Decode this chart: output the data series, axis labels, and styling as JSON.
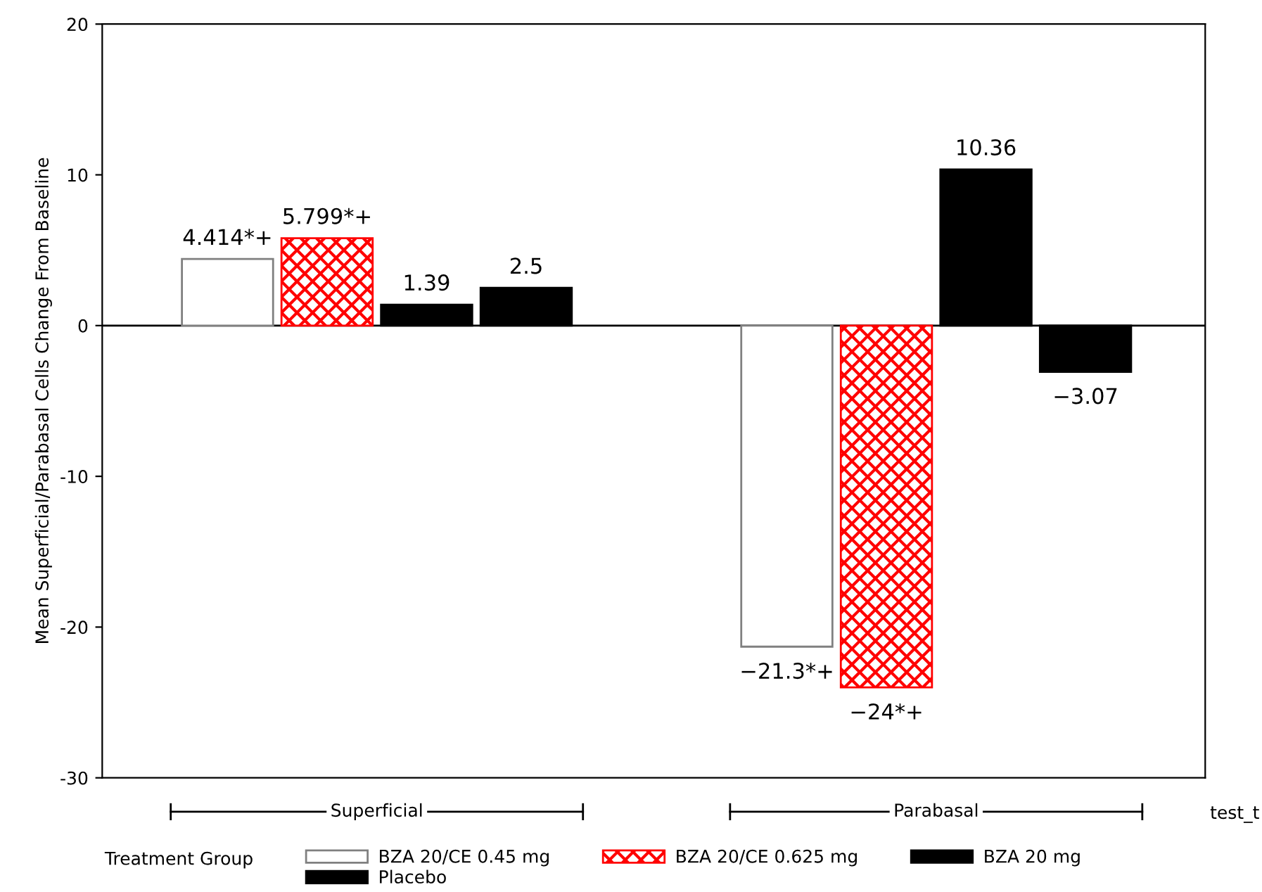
{
  "chart_data": {
    "type": "bar",
    "ylabel": "Mean Superficial/Parabasal Cells Change From Baseline",
    "legend_title": "Treatment Group",
    "categories": [
      "Superficial",
      "Parabasal"
    ],
    "series": [
      {
        "name": "BZA 20/CE 0.45 mg",
        "color": "#ffffff",
        "values": [
          4.414,
          -21.3
        ],
        "value_labels": [
          "4.414*+",
          "−21.3*+"
        ]
      },
      {
        "name": "BZA 20/CE 0.625 mg",
        "color": "#ff0000",
        "values": [
          5.799,
          -24
        ],
        "value_labels": [
          "5.799*+",
          "−24*+"
        ]
      },
      {
        "name": "BZA 20 mg",
        "color": "#000000",
        "values": [
          1.39,
          10.36
        ],
        "value_labels": [
          "1.39",
          "10.36"
        ]
      },
      {
        "name": "Placebo",
        "color": "#000000",
        "values": [
          2.5,
          -3.07
        ],
        "value_labels": [
          "2.5",
          "−3.07"
        ]
      }
    ],
    "ylim": [
      -30,
      20
    ],
    "yticks": [
      -30,
      -20,
      -10,
      0,
      10,
      20
    ],
    "ref_lines": [
      {
        "axis": "y",
        "value": 0,
        "color": "#000000"
      }
    ],
    "annotations": [
      "test_t"
    ],
    "grid": false,
    "legend": "bottom"
  }
}
